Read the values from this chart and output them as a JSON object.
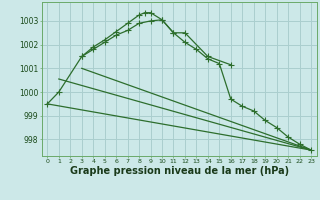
{
  "background_color": "#cce8e8",
  "grid_color": "#aacece",
  "line_color": "#2d6e2d",
  "xlabel": "Graphe pression niveau de la mer (hPa)",
  "xlabel_fontsize": 7,
  "ylabel_ticks": [
    998,
    999,
    1000,
    1001,
    1002,
    1003
  ],
  "xlim": [
    -0.5,
    23.5
  ],
  "ylim": [
    997.3,
    1003.8
  ],
  "curve1_x": [
    0,
    1,
    3,
    4,
    5,
    6,
    7,
    8,
    9,
    10,
    11,
    12,
    13,
    14,
    15,
    16,
    17,
    18,
    19,
    20,
    21,
    22,
    23
  ],
  "curve1_y": [
    999.5,
    1000.0,
    1001.5,
    1001.8,
    1002.1,
    1002.4,
    1002.6,
    1002.9,
    1003.0,
    1003.05,
    1002.5,
    1002.1,
    1001.8,
    1001.4,
    1001.2,
    999.7,
    999.4,
    999.2,
    998.8,
    998.5,
    998.1,
    997.8,
    997.55
  ],
  "curve2_x": [
    3,
    4,
    5,
    6,
    7,
    8,
    8.5,
    9,
    10,
    11,
    12,
    14,
    16
  ],
  "curve2_y": [
    1001.5,
    1001.9,
    1002.2,
    1002.55,
    1002.9,
    1003.25,
    1003.35,
    1003.35,
    1003.05,
    1002.5,
    1002.5,
    1001.5,
    1001.15
  ],
  "line1_x": [
    0,
    23
  ],
  "line1_y": [
    999.5,
    997.55
  ],
  "line2_x": [
    3,
    23
  ],
  "line2_y": [
    1001.0,
    997.55
  ],
  "line3_x": [
    1,
    23
  ],
  "line3_y": [
    1000.55,
    997.55
  ]
}
